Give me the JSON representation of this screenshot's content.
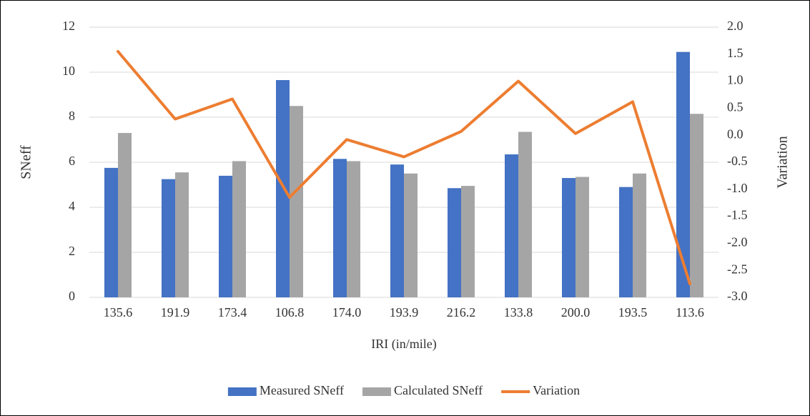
{
  "chart_data": {
    "type": "bar",
    "x_label": "IRI (in/mile)",
    "y_label": "SNeff",
    "y2_label": "Variation",
    "categories": [
      "135.6",
      "191.9",
      "173.4",
      "106.8",
      "174.0",
      "193.9",
      "216.2",
      "133.8",
      "200.0",
      "193.5",
      "113.6"
    ],
    "series": [
      {
        "name": "Measured SNeff",
        "color": "#4472c4",
        "type": "bar",
        "values": [
          5.75,
          5.25,
          5.4,
          9.65,
          6.15,
          5.9,
          4.85,
          6.35,
          5.3,
          4.9,
          10.9
        ]
      },
      {
        "name": "Calculated SNeff",
        "color": "#a5a5a5",
        "type": "bar",
        "values": [
          7.3,
          5.55,
          6.05,
          8.5,
          6.05,
          5.5,
          4.95,
          7.35,
          5.35,
          5.5,
          8.15
        ]
      },
      {
        "name": "Variation",
        "color": "#ed7d31",
        "type": "line",
        "axis": "y2",
        "values": [
          1.55,
          0.3,
          0.67,
          -1.15,
          -0.08,
          -0.4,
          0.07,
          1.0,
          0.03,
          0.62,
          -2.75
        ]
      }
    ],
    "ylim": [
      0,
      12
    ],
    "yticks": [
      0,
      2,
      4,
      6,
      8,
      10,
      12
    ],
    "y2lim": [
      -3,
      2
    ],
    "y2ticks": [
      {
        "value": -3,
        "label": "-3.0"
      },
      -2.5,
      {
        "value": -2,
        "label": "-2.0"
      },
      -1.5,
      {
        "value": -1,
        "label": "-1.0"
      },
      -0.5,
      {
        "value": 0,
        "label": "0.0"
      },
      0.5,
      {
        "value": 1,
        "label": "1.0"
      },
      1.5,
      {
        "value": 2,
        "label": "2.0"
      }
    ],
    "grid": true,
    "legend": "bottom"
  }
}
